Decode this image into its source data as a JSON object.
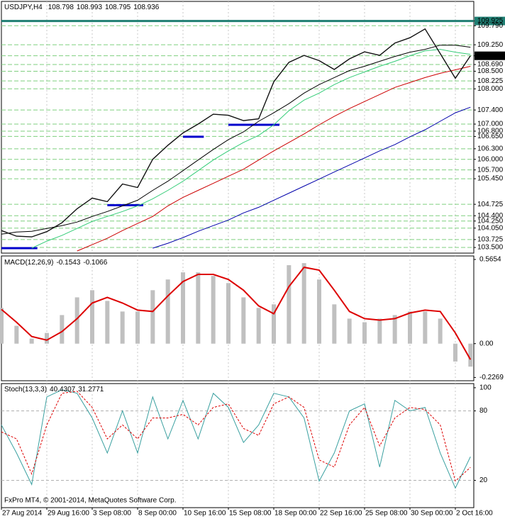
{
  "chart_data": [
    {
      "type": "line",
      "title": "USDJPY,H4",
      "ohlc": [
        108.798,
        108.993,
        108.795,
        108.936
      ],
      "ylim": [
        103.34,
        110.48
      ],
      "yticks": [
        109.925,
        {
          "value": 109.79,
          "label": "109.790"
        },
        {
          "value": 109.25,
          "label": "109.250"
        },
        {
          "value": 108.938,
          "label": "108.938"
        },
        {
          "value": 108.69,
          "label": "108.690"
        },
        {
          "value": 108.5,
          "label": "108.500"
        },
        108.225,
        {
          "value": 108,
          "label": "108.000"
        },
        {
          "value": 107.4,
          "label": "107.400"
        },
        {
          "value": 107,
          "label": "107.000"
        },
        {
          "value": 106.8,
          "label": "106.800"
        },
        {
          "value": 106.65,
          "label": "106.650"
        },
        {
          "value": 106.3,
          "label": "106.300"
        },
        {
          "value": 106,
          "label": "106.000"
        },
        {
          "value": 105.7,
          "label": "105.700"
        },
        {
          "value": 105.45,
          "label": "105.450"
        },
        104.725,
        {
          "value": 104.4,
          "label": "104.400"
        },
        {
          "value": 104.25,
          "label": "104.250"
        },
        {
          "value": 104.05,
          "label": "104.050"
        },
        103.725,
        {
          "value": 103.5,
          "label": "103.500"
        }
      ],
      "grid": true,
      "grid_color": "#7fcf7f",
      "supports": [
        {
          "value": 103.48,
          "start": 0,
          "end": 2
        },
        {
          "value": 104.7,
          "start": 7,
          "end": 9
        },
        {
          "value": 106.64,
          "start": 12,
          "end": 13
        },
        {
          "value": 106.98,
          "start": 15,
          "end": 18
        }
      ],
      "support_color": "#0000cc",
      "series": [
        {
          "color": "#0000aa",
          "values": [
            null,
            null,
            null,
            null,
            null,
            null,
            null,
            null,
            null,
            null,
            103.48,
            103.62,
            103.78,
            103.96,
            104.12,
            104.28,
            104.48,
            104.64,
            104.84,
            105.04,
            105.24,
            105.44,
            105.64,
            105.84,
            106.04,
            106.24,
            106.42,
            106.64,
            106.84,
            107.08,
            107.32,
            107.48
          ]
        },
        {
          "color": "#cc0000",
          "values": [
            null,
            null,
            null,
            null,
            null,
            103.4,
            103.58,
            103.76,
            103.98,
            104.18,
            104.38,
            104.68,
            104.92,
            105.12,
            105.32,
            105.52,
            105.72,
            105.98,
            106.24,
            106.48,
            106.72,
            106.98,
            107.22,
            107.44,
            107.64,
            107.84,
            108.04,
            108.18,
            108.32,
            108.44,
            108.54,
            108.64
          ]
        },
        {
          "color": "#33cc77",
          "values": [
            null,
            null,
            103.48,
            103.68,
            103.84,
            104.04,
            104.24,
            104.38,
            104.52,
            104.68,
            104.88,
            105.12,
            105.38,
            105.68,
            105.98,
            106.24,
            106.48,
            106.68,
            106.98,
            107.38,
            107.68,
            107.88,
            108.12,
            108.32,
            108.48,
            108.64,
            108.78,
            108.94,
            109.08,
            109.12,
            109.04,
            108.98
          ]
        },
        {
          "color": "#000000",
          "values": [
            103.88,
            103.94,
            103.96,
            104.04,
            104.12,
            104.22,
            104.38,
            104.52,
            104.68,
            104.84,
            105.12,
            105.38,
            105.68,
            105.98,
            106.28,
            106.56,
            106.78,
            107.08,
            107.32,
            107.58,
            107.88,
            108.12,
            108.32,
            108.52,
            108.64,
            108.78,
            108.92,
            109.04,
            109.12,
            109.24,
            109.24,
            109.18
          ]
        },
        {
          "color": "#111111",
          "values": [
            103.98,
            103.82,
            103.8,
            103.95,
            104.2,
            104.6,
            104.9,
            104.8,
            105.3,
            105.2,
            106.0,
            106.4,
            106.75,
            107.0,
            107.28,
            107.25,
            107.1,
            107.15,
            108.2,
            108.75,
            108.95,
            108.8,
            108.55,
            108.85,
            109.05,
            108.95,
            109.3,
            109.45,
            109.7,
            109.0,
            108.3,
            108.94
          ]
        }
      ]
    },
    {
      "type": "bar",
      "title": "MACD(12,26,9)",
      "ylim": [
        -0.249,
        0.589
      ],
      "yticks": [
        0.5654,
        {
          "value": 0,
          "label": "0.00"
        },
        -0.2269
      ],
      "color": "#c0c0c0",
      "values": [
        0.24,
        0.12,
        0.034,
        0.072,
        0.192,
        0.311,
        0.359,
        0.287,
        0.216,
        0.216,
        0.359,
        0.431,
        0.479,
        0.479,
        0.455,
        0.407,
        0.311,
        0.24,
        0.264,
        0.527,
        0.541,
        0.431,
        0.264,
        0.168,
        0.144,
        0.168,
        0.192,
        0.216,
        0.216,
        0.168,
        -0.12,
        -0.1543
      ],
      "signal": {
        "color": "#dd0000",
        "values": [
          0.23,
          0.144,
          0.048,
          0.024,
          0.081,
          0.168,
          0.273,
          0.311,
          0.273,
          0.225,
          0.216,
          0.321,
          0.417,
          0.465,
          0.465,
          0.431,
          0.359,
          0.254,
          0.201,
          0.383,
          0.513,
          0.494,
          0.359,
          0.216,
          0.168,
          0.158,
          0.168,
          0.206,
          0.225,
          0.216,
          0.072,
          -0.1066
        ]
      }
    },
    {
      "type": "line",
      "title": "Stoch(13,3,3)",
      "ylim": [
        -3.6,
        103.6
      ],
      "yticks": [
        100,
        80,
        20
      ],
      "grid": true,
      "grid_color": "#b0b0b0",
      "annotation": "FxPro MT4, © 2001-2014, MetaQuotes Software Corp.",
      "categories": [
        "27 Aug 2014",
        null,
        null,
        "29 Aug 16:00",
        null,
        null,
        "3 Sep 08:00",
        null,
        null,
        "8 Sep 00:00",
        null,
        null,
        "10 Sep 16:00",
        null,
        null,
        "15 Sep 08:00",
        null,
        null,
        "18 Sep 00:00",
        null,
        null,
        "22 Sep 16:00",
        null,
        null,
        "25 Sep 08:00",
        null,
        null,
        "30 Sep 00:00",
        null,
        null,
        "2 Oct 16:00",
        null
      ],
      "series": [
        {
          "color": "#3aa0a0",
          "values": [
            67.9,
            43.6,
            16.4,
            92.1,
            98.2,
            95.2,
            73.9,
            43.6,
            80,
            43.6,
            92.1,
            55.8,
            89.1,
            55.8,
            95.2,
            83,
            52.7,
            67.9,
            95.2,
            92.1,
            73.9,
            19.4,
            43.6,
            80,
            86.1,
            31.5,
            89.1,
            80,
            83,
            43.6,
            13.3,
            40.4307
          ]
        },
        {
          "color": "#dd0000",
          "dashed": true,
          "values": [
            61.8,
            55.8,
            25.5,
            67.9,
            95.2,
            97,
            83,
            55.8,
            67.9,
            55.8,
            73.9,
            73.9,
            77,
            67.9,
            83,
            86.1,
            64.8,
            58.8,
            86.1,
            92.1,
            83,
            37.6,
            31.5,
            67.9,
            83,
            49.7,
            73.9,
            83,
            81.2,
            67.9,
            19.4,
            31.2771
          ]
        }
      ]
    }
  ]
}
